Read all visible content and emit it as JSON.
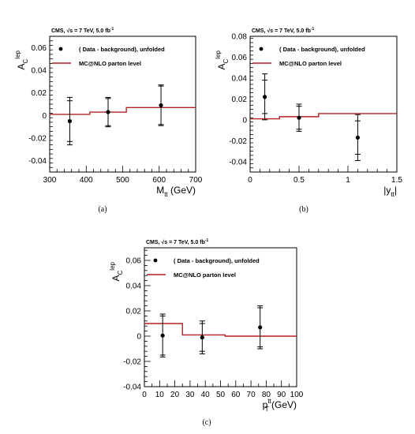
{
  "colors": {
    "mc_line": "#b22222",
    "data_marker": "#000000"
  },
  "chart_data": [
    {
      "type": "scatter",
      "caption": "(a)",
      "header": "CMS, √s = 7 TeV, 5.0 fb",
      "header_sup": "-1",
      "ylabel": "A",
      "ylabel_sub": "C",
      "ylabel_sup": "lep",
      "xlabel": "M",
      "xlabel_sub": "tt",
      "xlabel_unit": " (GeV)",
      "xlim": [
        300,
        700
      ],
      "ylim": [
        -0.05,
        0.07
      ],
      "xticks": [
        "300",
        "400",
        "500",
        "600",
        "700"
      ],
      "yticks": [
        "-0.04",
        "-0.02",
        "0",
        "0.02",
        "0.04",
        "0.06"
      ],
      "legend": {
        "data": "( Data - background), unfolded",
        "mc": "MC@NLO parton level"
      },
      "mc_steps": [
        {
          "x0": 300,
          "x1": 410,
          "y": 0.001
        },
        {
          "x0": 410,
          "x1": 510,
          "y": 0.003
        },
        {
          "x0": 510,
          "x1": 700,
          "y": 0.007
        }
      ],
      "points": [
        {
          "x": 355,
          "y": -0.005,
          "err_stat": 0.018,
          "err_tot": 0.021
        },
        {
          "x": 460,
          "y": 0.003,
          "err_stat": 0.012,
          "err_tot": 0.013
        },
        {
          "x": 605,
          "y": 0.009,
          "err_stat": 0.017,
          "err_tot": 0.018
        }
      ]
    },
    {
      "type": "scatter",
      "caption": "(b)",
      "header": "CMS, √s = 7 TeV, 5.0 fb",
      "header_sup": "-1",
      "ylabel": "A",
      "ylabel_sub": "C",
      "ylabel_sup": "lep",
      "xlabel": "|y",
      "xlabel_sub": "tt",
      "xlabel_unit": "|",
      "xlim": [
        0,
        1.5
      ],
      "ylim": [
        -0.05,
        0.08
      ],
      "xticks": [
        "0",
        "0.5",
        "1",
        "1.5"
      ],
      "yticks": [
        "-0.04",
        "-0.02",
        "0",
        "0.02",
        "0.04",
        "0.06",
        "0.08"
      ],
      "legend": {
        "data": "( Data - background), unfolded",
        "mc": "MC@NLO parton level"
      },
      "mc_steps": [
        {
          "x0": 0,
          "x1": 0.3,
          "y": 0.001
        },
        {
          "x0": 0.3,
          "x1": 0.7,
          "y": 0.003
        },
        {
          "x0": 0.7,
          "x1": 1.5,
          "y": 0.006
        }
      ],
      "points": [
        {
          "x": 0.15,
          "y": 0.022,
          "err_stat": 0.016,
          "err_tot": 0.022
        },
        {
          "x": 0.5,
          "y": 0.002,
          "err_stat": 0.011,
          "err_tot": 0.013
        },
        {
          "x": 1.1,
          "y": -0.017,
          "err_stat": 0.016,
          "err_tot": 0.022
        }
      ]
    },
    {
      "type": "scatter",
      "caption": "(c)",
      "header": "CMS, √s = 7 TeV, 5.0 fb",
      "header_sup": "-1",
      "ylabel": "A",
      "ylabel_sub": "C",
      "ylabel_sup": "lep",
      "xlabel": "p",
      "xlabel_sub": "T",
      "xlabel_sup": "tt",
      "xlabel_unit": " (GeV)",
      "xlim": [
        0,
        100
      ],
      "ylim": [
        -0.04,
        0.07
      ],
      "xticks": [
        "0",
        "10",
        "20",
        "30",
        "40",
        "50",
        "60",
        "70",
        "80",
        "90",
        "100"
      ],
      "yticks": [
        "-0.04",
        "-0.02",
        "0",
        "0.02",
        "0.04",
        "0.06"
      ],
      "legend": {
        "data": "( Data - background), unfolded",
        "mc": "MC@NLO parton level"
      },
      "mc_steps": [
        {
          "x0": 0,
          "x1": 25,
          "y": 0.01
        },
        {
          "x0": 25,
          "x1": 53,
          "y": 0.001
        },
        {
          "x0": 53,
          "x1": 100,
          "y": 0.0
        }
      ],
      "points": [
        {
          "x": 12,
          "y": 0.0005,
          "err_stat": 0.0155,
          "err_tot": 0.017
        },
        {
          "x": 38,
          "y": -0.001,
          "err_stat": 0.011,
          "err_tot": 0.013
        },
        {
          "x": 76,
          "y": 0.007,
          "err_stat": 0.0155,
          "err_tot": 0.017
        }
      ]
    }
  ]
}
